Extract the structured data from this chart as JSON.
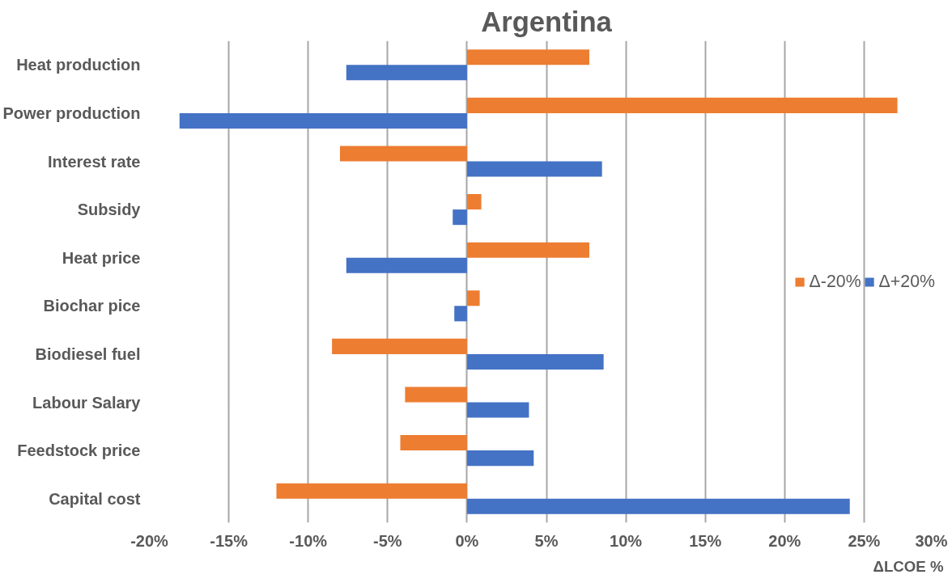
{
  "chart_data": {
    "type": "bar",
    "orientation": "horizontal",
    "title": "Argentina",
    "xlabel": "ΔLCOE %",
    "categories": [
      "Heat production",
      "Power production",
      "Interest rate",
      "Subsidy",
      "Heat price",
      "Biochar pice",
      "Biodiesel fuel",
      "Labour Salary",
      "Feedstock price",
      "Capital cost"
    ],
    "series": [
      {
        "name": "Δ-20%",
        "color": "#ed7d31",
        "values": [
          7.7,
          27.1,
          -8.0,
          0.9,
          7.7,
          0.8,
          -8.5,
          -3.9,
          -4.2,
          -12.0
        ]
      },
      {
        "name": "Δ+20%",
        "color": "#4472c4",
        "values": [
          -7.6,
          -18.1,
          8.5,
          -0.9,
          -7.6,
          -0.8,
          8.6,
          3.9,
          4.2,
          24.1
        ]
      }
    ],
    "xlim": [
      -20,
      30
    ],
    "xticks": [
      {
        "value": -20,
        "label": "-20%"
      },
      {
        "value": -15,
        "label": "-15%"
      },
      {
        "value": -10,
        "label": "-10%"
      },
      {
        "value": -5,
        "label": "-5%"
      },
      {
        "value": 0,
        "label": "0%"
      },
      {
        "value": 5,
        "label": "5%"
      },
      {
        "value": 10,
        "label": "10%"
      },
      {
        "value": 15,
        "label": "15%"
      },
      {
        "value": 20,
        "label": "20%"
      },
      {
        "value": 25,
        "label": "25%"
      },
      {
        "value": 30,
        "label": "30%"
      }
    ],
    "grid": "x",
    "legend": "right"
  }
}
